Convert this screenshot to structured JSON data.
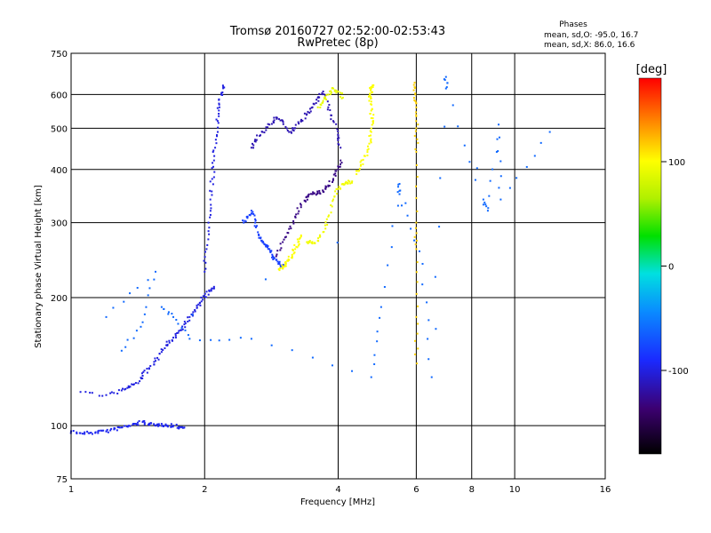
{
  "chart_data": {
    "type": "scatter",
    "title": "Tromsø 20160727 02:52:00-02:53:43",
    "subtitle": "RwPretec (8p)",
    "xlabel": "Frequency [MHz]",
    "ylabel": "Stationary phase Virtual Height [km]",
    "x_scale": "log",
    "y_scale": "log",
    "xlim": [
      1,
      16
    ],
    "ylim": [
      75,
      750
    ],
    "x_ticks": [
      1,
      2,
      4,
      6,
      8,
      10,
      16
    ],
    "y_ticks": [
      75,
      100,
      200,
      300,
      400,
      500,
      600,
      750
    ],
    "grid": true,
    "phase_stats": {
      "heading": "Phases",
      "line_o": "mean, sd,O: -95.0, 16.7",
      "line_x": "mean, sd,X:  86.0, 16.6"
    },
    "colorbar": {
      "label": "[deg]",
      "ticks": [
        100,
        0,
        -100
      ],
      "range": [
        -180,
        180
      ]
    },
    "traces": [
      {
        "f": [
          1.0,
          1.05,
          1.1,
          1.15,
          1.2,
          1.25,
          1.3,
          1.35,
          1.4,
          1.45,
          1.5,
          1.55,
          1.6,
          1.65,
          1.7,
          1.75,
          1.8
        ],
        "h": [
          97,
          96,
          96,
          97,
          97,
          98,
          99,
          100,
          101,
          102,
          101,
          100,
          101,
          100,
          100,
          99,
          99
        ],
        "phase": -95
      },
      {
        "f": [
          1.05,
          1.2,
          1.3,
          1.35,
          1.4,
          1.45,
          1.5,
          1.55,
          1.6,
          1.65,
          1.7,
          1.75,
          1.8,
          1.85,
          1.9,
          1.95,
          2.0,
          2.05,
          2.1
        ],
        "h": [
          120,
          118,
          121,
          123,
          126,
          131,
          136,
          142,
          149,
          155,
          161,
          167,
          173,
          180,
          187,
          194,
          201,
          207,
          212
        ],
        "phase": -100
      },
      {
        "f": [
          2.0,
          2.02,
          2.04,
          2.06,
          2.08,
          2.1,
          2.12,
          2.14,
          2.16,
          2.18,
          2.2
        ],
        "h": [
          230,
          260,
          300,
          340,
          380,
          420,
          470,
          520,
          560,
          600,
          630
        ],
        "phase": -100
      },
      {
        "f": [
          2.45,
          2.5,
          2.55,
          2.6,
          2.65,
          2.7,
          2.75,
          2.8,
          2.85,
          2.9,
          2.95,
          3.0
        ],
        "h": [
          300,
          310,
          320,
          300,
          280,
          270,
          265,
          260,
          250,
          245,
          240,
          235
        ],
        "phase": -80
      },
      {
        "f": [
          2.55,
          2.6,
          2.7,
          2.8,
          2.9,
          3.0,
          3.1,
          3.2,
          3.3,
          3.4,
          3.5,
          3.6,
          3.7,
          3.8,
          3.9,
          4.0,
          4.05
        ],
        "h": [
          450,
          470,
          490,
          510,
          530,
          520,
          490,
          500,
          520,
          540,
          560,
          590,
          610,
          560,
          520,
          480,
          450
        ],
        "phase": -115
      },
      {
        "f": [
          2.9,
          3.0,
          3.1,
          3.2,
          3.3,
          3.4,
          3.5,
          3.6,
          3.7,
          3.8,
          3.9,
          4.0,
          4.05
        ],
        "h": [
          250,
          270,
          290,
          310,
          330,
          345,
          350,
          352,
          355,
          365,
          380,
          400,
          420
        ],
        "phase": -130
      },
      {
        "f": [
          2.95,
          3.0,
          3.05,
          3.1,
          3.15,
          3.2,
          3.25,
          3.3
        ],
        "h": [
          232,
          236,
          240,
          245,
          252,
          260,
          270,
          280
        ],
        "phase": 100
      },
      {
        "f": [
          3.4,
          3.5,
          3.6,
          3.7,
          3.8,
          3.9,
          4.0,
          4.1,
          4.2,
          4.3
        ],
        "h": [
          270,
          268,
          272,
          285,
          310,
          340,
          360,
          370,
          372,
          375
        ],
        "phase": 95
      },
      {
        "f": [
          3.6,
          3.7,
          3.8,
          3.9,
          4.0,
          4.1
        ],
        "h": [
          560,
          580,
          600,
          620,
          610,
          590
        ],
        "phase": 90
      },
      {
        "f": [
          4.4,
          4.5,
          4.6,
          4.7,
          4.75,
          4.8,
          4.75,
          4.7,
          4.72,
          4.75,
          4.78
        ],
        "h": [
          390,
          410,
          430,
          460,
          490,
          520,
          550,
          580,
          600,
          620,
          630
        ],
        "phase": 100
      },
      {
        "f": [
          5.95,
          5.97,
          6.0,
          6.0,
          6.0,
          6.0,
          6.0,
          6.0,
          6.02
        ],
        "h": [
          640,
          600,
          560,
          500,
          440,
          300,
          260,
          180,
          140
        ],
        "phase": 115
      },
      {
        "f": [
          1.6,
          1.7,
          1.85,
          2.55,
          4.75,
          5.0,
          5.5,
          5.5,
          6.2,
          6.5,
          7.0,
          7.0,
          8.5,
          8.7,
          9.2,
          9.3,
          12.0,
          1.3,
          1.45,
          1.55,
          1.2
        ],
        "h": [
          190,
          180,
          160,
          160,
          130,
          190,
          370,
          350,
          240,
          130,
          660,
          620,
          340,
          320,
          510,
          340,
          490,
          150,
          175,
          230,
          180
        ],
        "phase": -60
      }
    ]
  }
}
